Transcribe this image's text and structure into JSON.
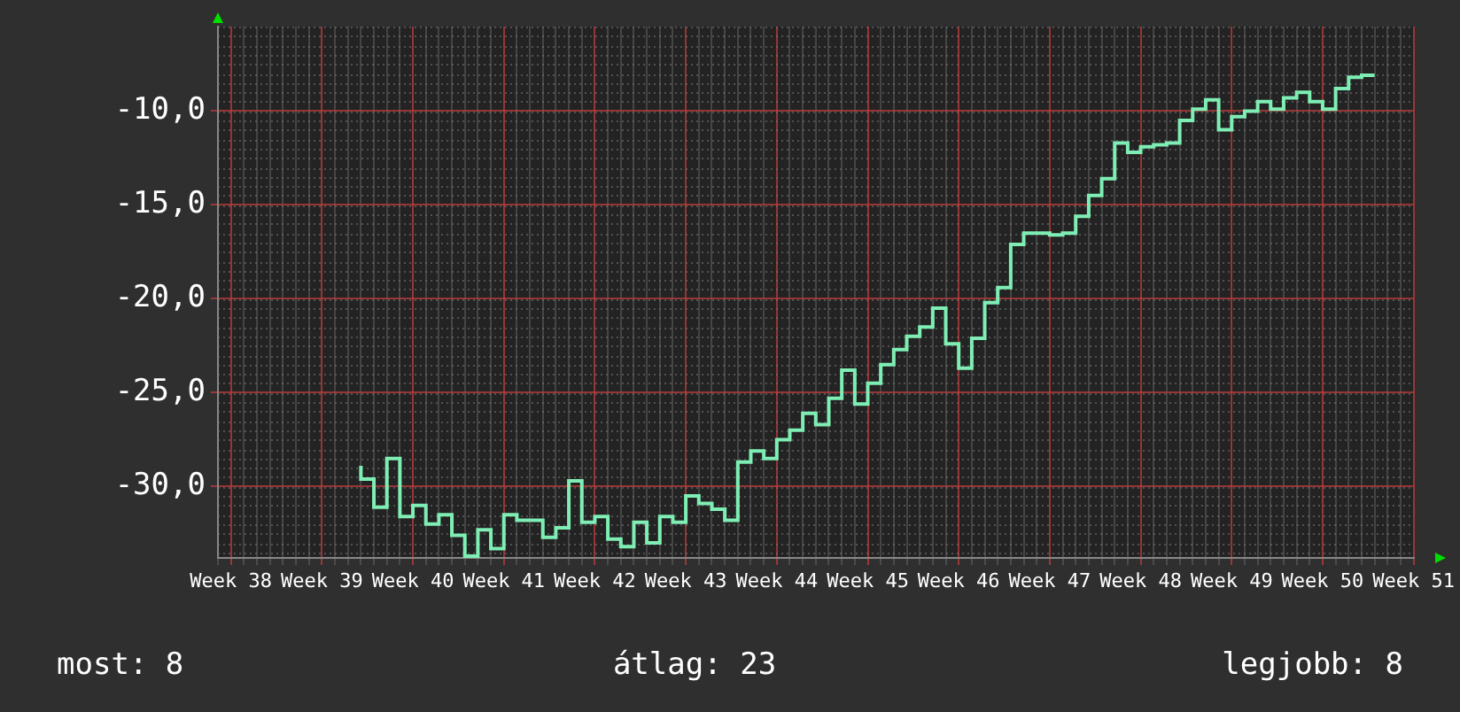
{
  "chart_data": {
    "type": "step",
    "categories": [
      null,
      "Week 38",
      null,
      null,
      null,
      null,
      null,
      null,
      "Week 39",
      null,
      null,
      null,
      null,
      null,
      null,
      "Week 40",
      null,
      null,
      null,
      null,
      null,
      null,
      "Week 41",
      null,
      null,
      null,
      null,
      null,
      null,
      "Week 42",
      null,
      null,
      null,
      null,
      null,
      null,
      "Week 43",
      null,
      null,
      null,
      null,
      null,
      null,
      "Week 44",
      null,
      null,
      null,
      null,
      null,
      null,
      "Week 45",
      null,
      null,
      null,
      null,
      null,
      null,
      "Week 46",
      null,
      null,
      null,
      null,
      null,
      null,
      "Week 47",
      null,
      null,
      null,
      null,
      null,
      null,
      "Week 48",
      null,
      null,
      null,
      null,
      null,
      null,
      "Week 49",
      null,
      null,
      null,
      null,
      null,
      null,
      "Week 50",
      null,
      null,
      null,
      null,
      null,
      null,
      "Week 51"
    ],
    "series": [
      {
        "color": "#7eeeb4",
        "values": [
          null,
          null,
          null,
          null,
          null,
          null,
          null,
          null,
          null,
          null,
          null,
          -28.9,
          -29.6,
          -31.1,
          -28.5,
          -31.6,
          -31.0,
          -32.0,
          -31.5,
          -32.6,
          -33.7,
          -32.3,
          -33.3,
          -31.5,
          -31.8,
          -31.8,
          -32.7,
          -32.2,
          -29.7,
          -31.9,
          -31.6,
          -32.8,
          -33.2,
          -31.9,
          -33.0,
          -31.6,
          -31.9,
          -30.5,
          -30.9,
          -31.2,
          -31.8,
          -28.7,
          -28.1,
          -28.5,
          -27.5,
          -27.0,
          -26.1,
          -26.7,
          -25.3,
          -23.8,
          -25.6,
          -24.5,
          -23.5,
          -22.7,
          -22.0,
          -21.5,
          -20.5,
          -22.4,
          -23.7,
          -22.1,
          -20.2,
          -19.4,
          -17.1,
          -16.5,
          -16.5,
          -16.6,
          -16.5,
          -15.6,
          -14.5,
          -13.6,
          -11.7,
          -12.2,
          -11.9,
          -11.8,
          -11.7,
          -10.5,
          -9.9,
          -9.4,
          -11.0,
          -10.3,
          -10.0,
          -9.5,
          -9.9,
          -9.3,
          -9.0,
          -9.5,
          -9.9,
          -8.8,
          -8.2,
          -8.1,
          null,
          null,
          null
        ]
      }
    ],
    "ylim": [
      -33.8,
      -5.5
    ],
    "yticks": [
      {
        "value": -30,
        "label": "-30,0"
      },
      {
        "value": -25,
        "label": "-25,0"
      },
      {
        "value": -20,
        "label": "-20,0"
      },
      {
        "value": -15,
        "label": "-15,0"
      },
      {
        "value": -10,
        "label": "-10,0"
      }
    ],
    "grid": true,
    "legend": false,
    "annotations": [
      "most: 8",
      "átlag: 23",
      "legjobb: 8"
    ]
  }
}
